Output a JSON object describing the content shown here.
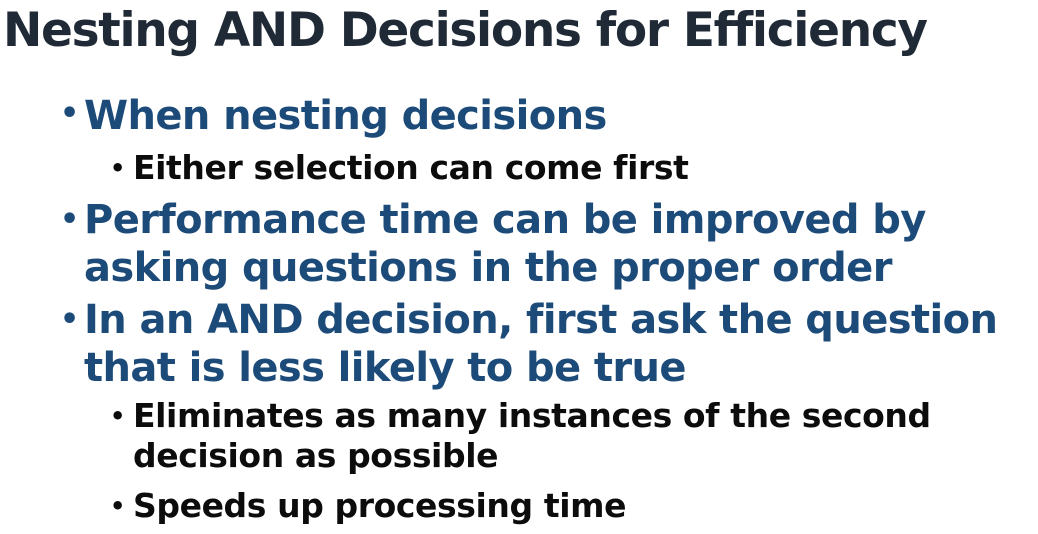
{
  "slide": {
    "title": "Nesting AND Decisions for Efficiency",
    "bullets": [
      {
        "level": 1,
        "lines": [
          "When nesting decisions"
        ]
      },
      {
        "level": 2,
        "lines": [
          "Either selection can come first"
        ]
      },
      {
        "level": 1,
        "lines": [
          "Performance time can be improved by",
          "asking questions in the proper order"
        ]
      },
      {
        "level": 1,
        "lines": [
          "In an AND decision, first ask the question",
          "that is less likely to be true"
        ]
      },
      {
        "level": 2,
        "lines": [
          "Eliminates as many instances of the second",
          "decision as possible"
        ]
      },
      {
        "level": 2,
        "lines": [
          "Speeds up processing time"
        ]
      }
    ],
    "bullet_glyph": "•",
    "colors": {
      "title": "#1f2a36",
      "level1": "#1c4b79",
      "level2": "#0c0c0c",
      "background": "#ffffff"
    }
  }
}
